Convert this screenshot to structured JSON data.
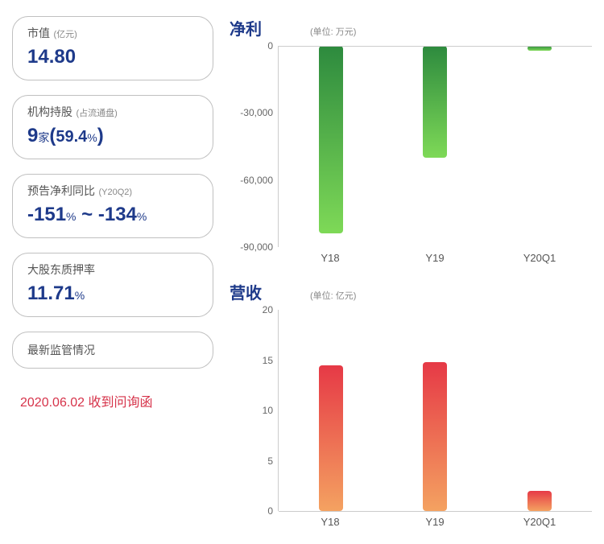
{
  "metrics": {
    "market_cap": {
      "label": "市值",
      "unit": "(亿元)",
      "value": "14.80"
    },
    "institutional": {
      "label": "机构持股",
      "sub": "(占流通盘)",
      "count": "9",
      "count_unit": "家",
      "pct": "59.4",
      "pct_unit": "%"
    },
    "profit_forecast": {
      "label": "预告净利同比",
      "sub": "(Y20Q2)",
      "low": "-151",
      "high": "-134",
      "unit": "%",
      "sep": " ~ "
    },
    "pledge": {
      "label": "大股东质押率",
      "value": "11.71",
      "unit": "%"
    },
    "regulatory": {
      "label": "最新监管情况"
    }
  },
  "bottom_line": "2020.06.02 收到问询函",
  "charts": {
    "net_profit": {
      "title": "净利",
      "unit": "(单位: 万元)",
      "type": "bar",
      "categories": [
        "Y18",
        "Y19",
        "Y20Q1"
      ],
      "values": [
        -84000,
        -50000,
        -2000
      ],
      "ymin": -90000,
      "ymax": 0,
      "ytick_step": 30000,
      "bar_gradient": [
        "#2d8a3e",
        "#7ed957"
      ],
      "baseline": 0,
      "direction": "down"
    },
    "revenue": {
      "title": "营收",
      "unit": "(单位: 亿元)",
      "type": "bar",
      "categories": [
        "Y18",
        "Y19",
        "Y20Q1"
      ],
      "values": [
        14.5,
        14.8,
        2.0
      ],
      "ymin": 0,
      "ymax": 20,
      "ytick_step": 5,
      "bar_gradient": [
        "#e63946",
        "#f4a261"
      ],
      "baseline": 0,
      "direction": "up"
    }
  },
  "colors": {
    "primary": "#1e3a8a",
    "red": "#d6334a",
    "border": "#c0c0c0",
    "axis": "#cccccc",
    "text_gray": "#666666"
  }
}
